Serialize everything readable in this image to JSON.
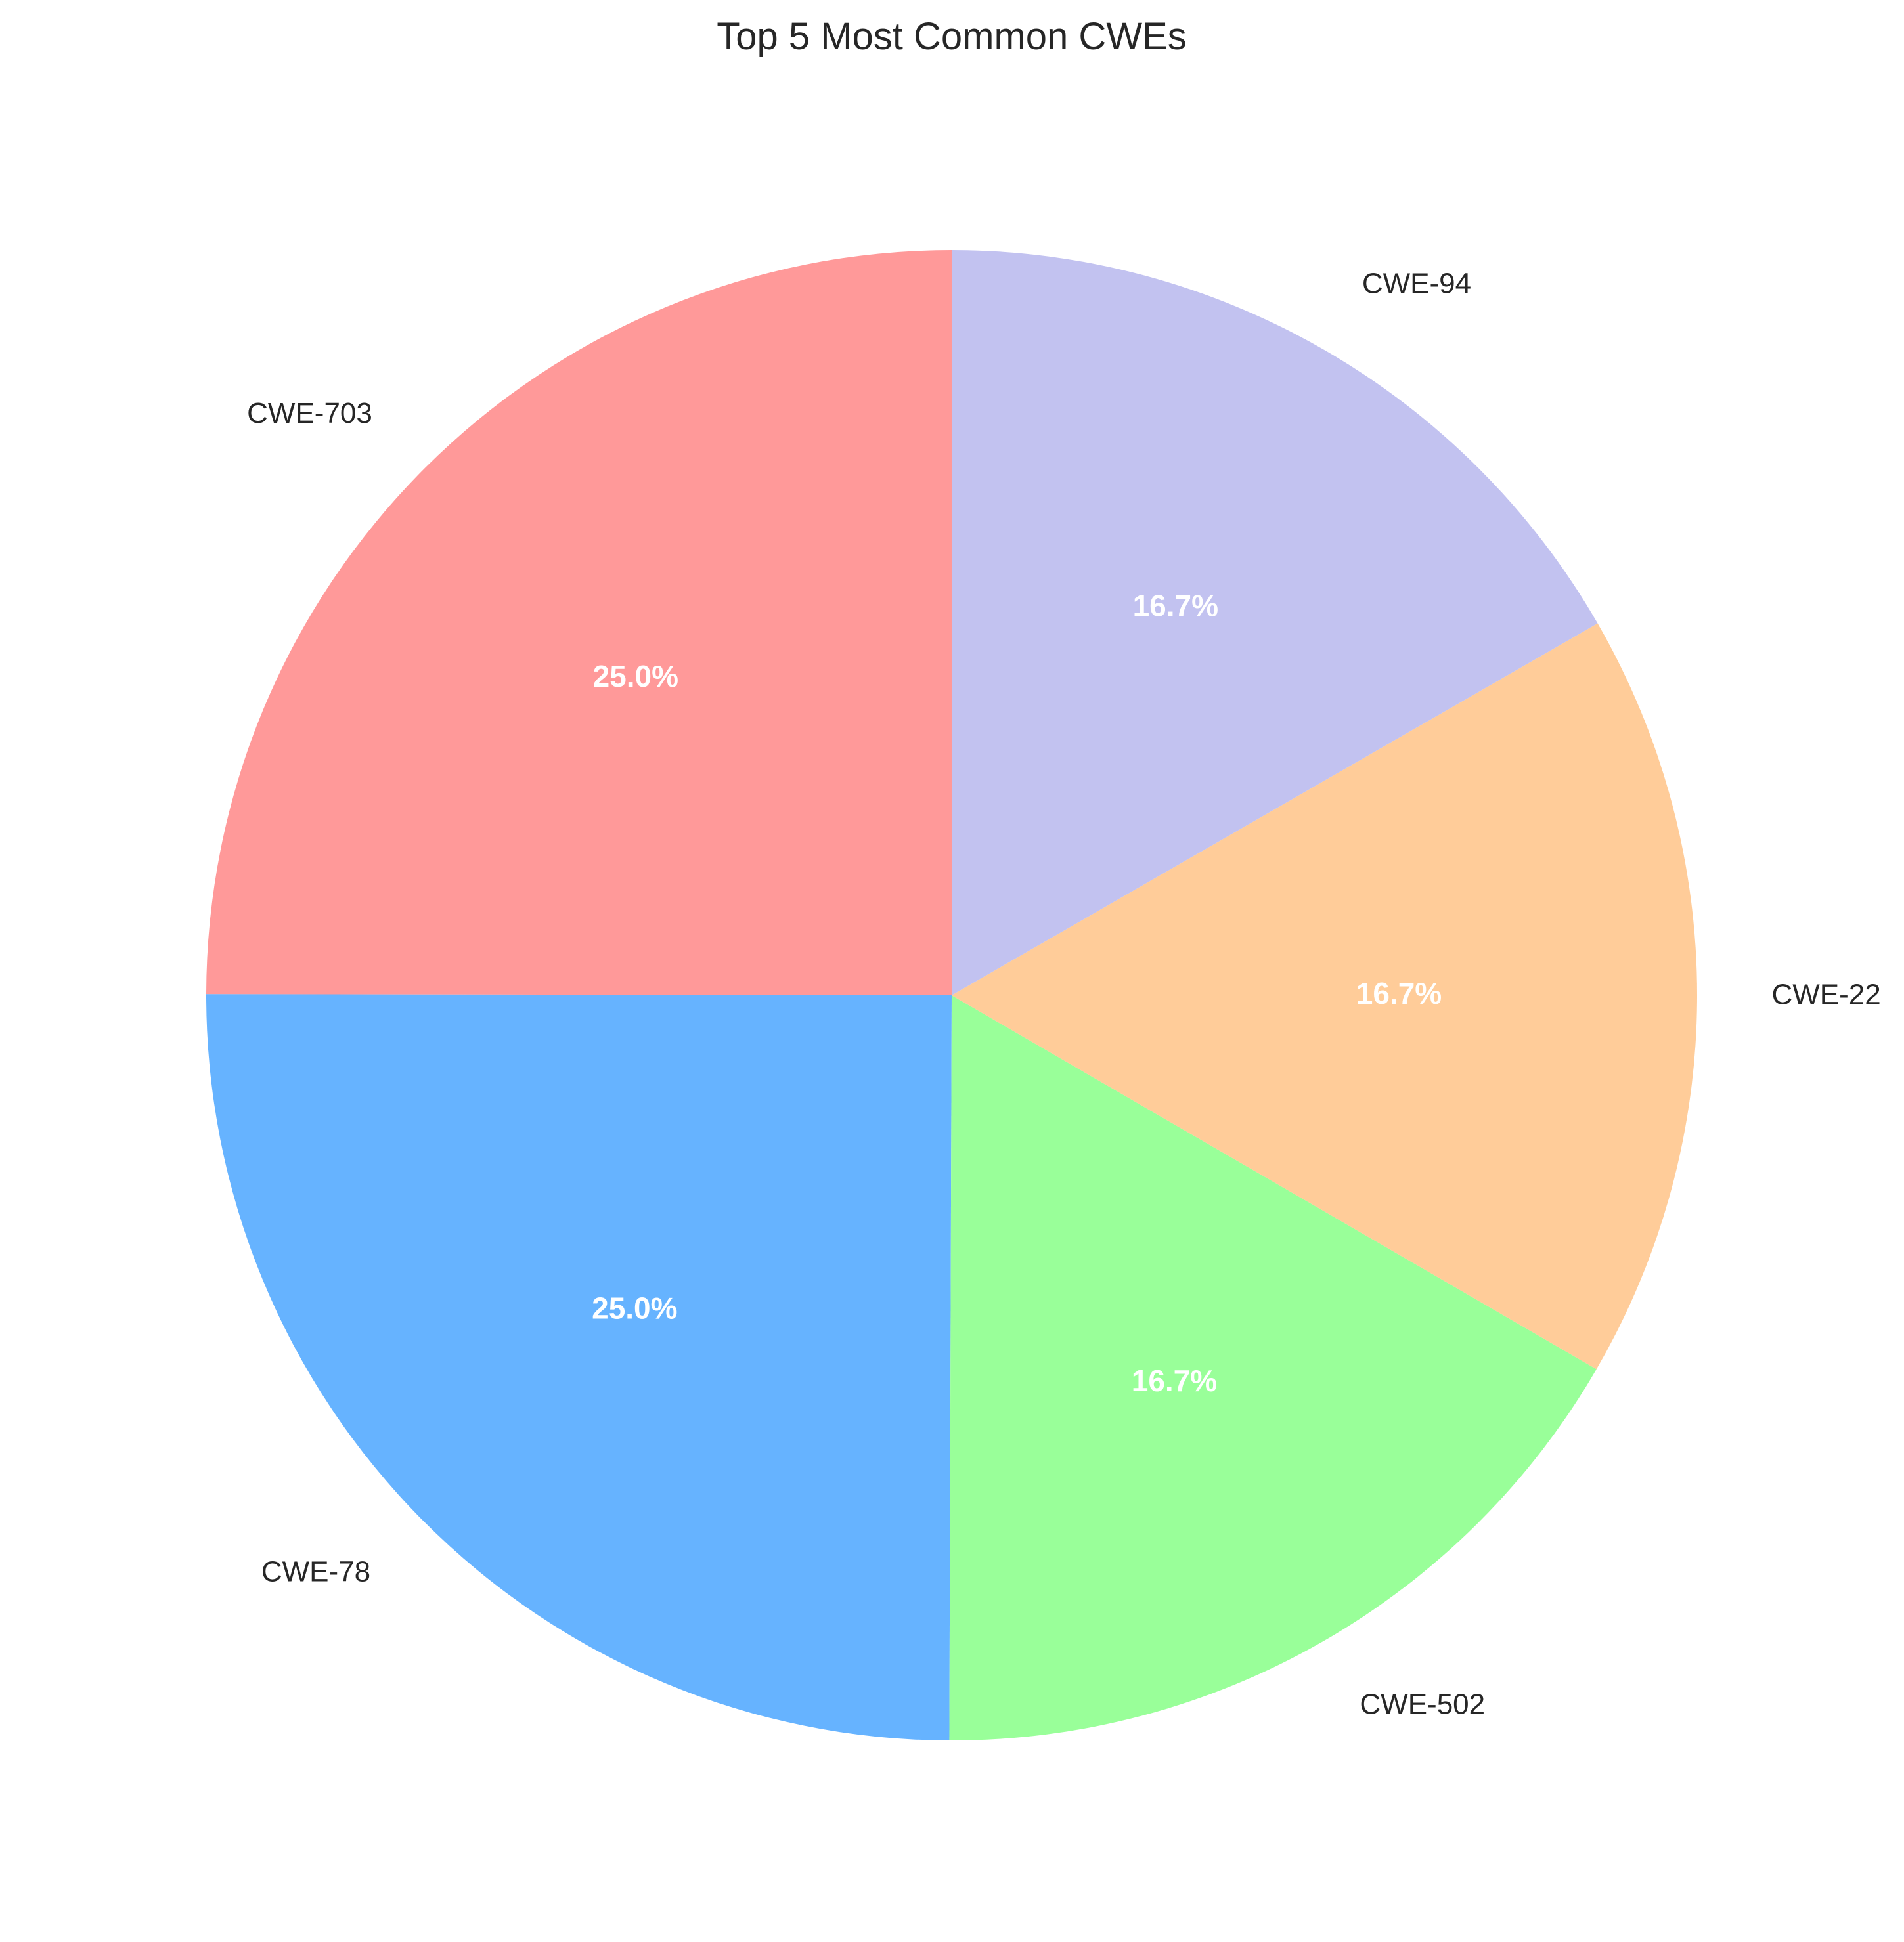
{
  "chart_data": {
    "type": "pie",
    "title": "Top 5 Most Common CWEs",
    "start_angle_deg": 90,
    "direction": "counterclockwise",
    "slices": [
      {
        "label": "CWE-703",
        "value": 25.0,
        "pct_label": "25.0%",
        "color": "#ff9999"
      },
      {
        "label": "CWE-78",
        "value": 25.0,
        "pct_label": "25.0%",
        "color": "#66b3ff"
      },
      {
        "label": "CWE-502",
        "value": 16.7,
        "pct_label": "16.7%",
        "color": "#99ff99"
      },
      {
        "label": "CWE-22",
        "value": 16.7,
        "pct_label": "16.7%",
        "color": "#ffcc99"
      },
      {
        "label": "CWE-94",
        "value": 16.7,
        "pct_label": "16.7%",
        "color": "#c2c2f0"
      }
    ]
  }
}
